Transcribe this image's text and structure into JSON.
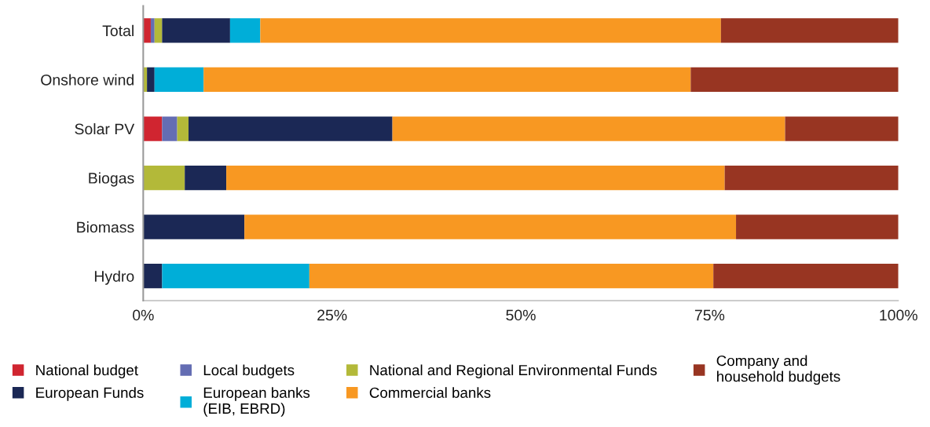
{
  "chart_data": {
    "type": "bar",
    "orientation": "horizontal",
    "stacked": true,
    "categories": [
      "Total",
      "Onshore wind",
      "Solar PV",
      "Biogas",
      "Biomass",
      "Hydro"
    ],
    "series": [
      {
        "name": "National budget",
        "color": "#d02530",
        "values": [
          1.0,
          0,
          2.5,
          0,
          0,
          0
        ]
      },
      {
        "name": "Local budgets",
        "color": "#646db3",
        "values": [
          0.5,
          0,
          2.0,
          0,
          0,
          0
        ]
      },
      {
        "name": "National and Regional Environmental Funds",
        "color": "#b3b939",
        "values": [
          1.0,
          0.5,
          1.5,
          5.5,
          0,
          0
        ]
      },
      {
        "name": "European Funds",
        "color": "#1b2855",
        "values": [
          9.0,
          1.0,
          27.0,
          5.5,
          13.4,
          2.5
        ]
      },
      {
        "name": "European banks\n(EIB, EBRD)",
        "color": "#00aed8",
        "values": [
          4.0,
          6.5,
          0,
          0,
          0,
          19.5
        ]
      },
      {
        "name": "Commercial banks",
        "color": "#f89822",
        "values": [
          61.0,
          64.5,
          52.0,
          66.0,
          65.1,
          53.5
        ]
      },
      {
        "name": "Company and\nhousehold budgets",
        "color": "#983522",
        "values": [
          23.5,
          27.5,
          15.0,
          23.0,
          21.5,
          24.5
        ]
      }
    ],
    "xlim": [
      0,
      100
    ],
    "xticks": [
      {
        "value": 0,
        "label": "0%"
      },
      {
        "value": 25,
        "label": "25%"
      },
      {
        "value": 50,
        "label": "50%"
      },
      {
        "value": 75,
        "label": "75%"
      },
      {
        "value": 100,
        "label": "100%"
      }
    ],
    "grid": false,
    "legend": "bottom"
  }
}
